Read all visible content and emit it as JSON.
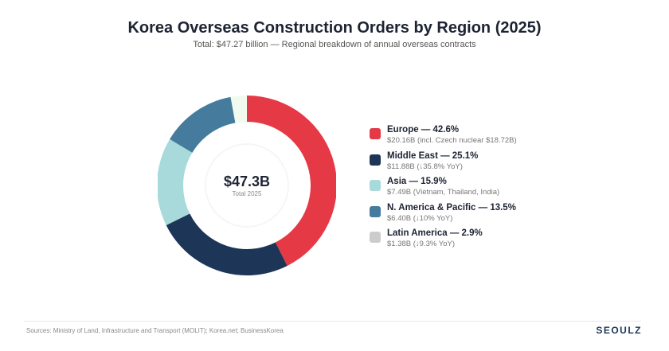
{
  "title": "Korea Overseas Construction Orders by Region (2025)",
  "subtitle": "Total: $47.27 billion — Regional breakdown of annual overseas contracts",
  "chart_data": {
    "type": "pie",
    "donut": true,
    "center_value": "$47.3B",
    "center_label": "Total 2025",
    "legend_position": "right",
    "categories": [
      "Europe",
      "Middle East",
      "Asia",
      "N. America & Pacific",
      "Latin America"
    ],
    "values": [
      42.6,
      25.1,
      15.9,
      13.5,
      2.9
    ],
    "amounts_billion_usd": [
      20.16,
      11.88,
      7.49,
      6.4,
      1.38
    ],
    "colors": [
      "#e63946",
      "#1d3557",
      "#a8dadc",
      "#457b9d",
      "#f1faee"
    ],
    "legend_colors": [
      "#e63946",
      "#1d3557",
      "#a8dadc",
      "#457b9d",
      "#cccccc"
    ],
    "legend": [
      {
        "label": "Europe — 42.6%",
        "detail": "$20.16B (incl. Czech nuclear $18.72B)"
      },
      {
        "label": "Middle East — 25.1%",
        "detail": "$11.88B (↓35.8% YoY)"
      },
      {
        "label": "Asia — 15.9%",
        "detail": "$7.49B (Vietnam, Thailand, India)"
      },
      {
        "label": "N. America & Pacific — 13.5%",
        "detail": "$6.40B (↓10% YoY)"
      },
      {
        "label": "Latin America — 2.9%",
        "detail": "$1.38B (↓9.3% YoY)"
      }
    ]
  },
  "footer": {
    "source": "Sources: Ministry of Land, Infrastructure and Transport (MOLIT); Korea.net; BusinessKorea",
    "brand": "SEOULZ"
  }
}
